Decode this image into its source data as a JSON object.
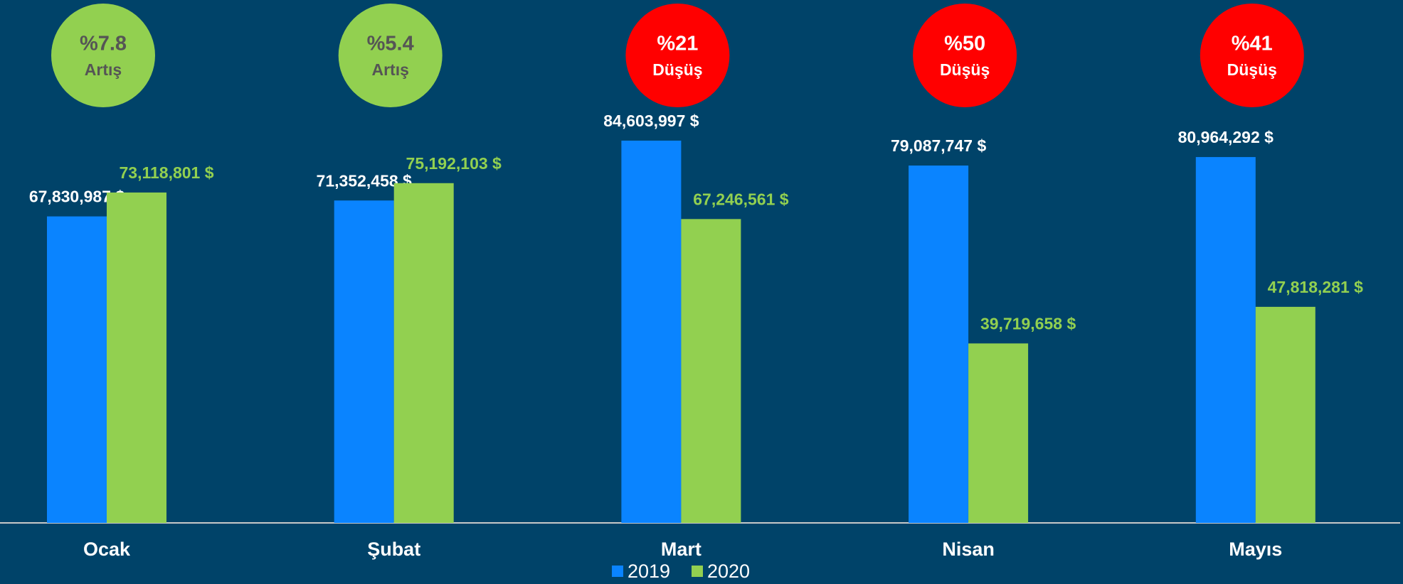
{
  "chart_data": {
    "type": "bar",
    "categories": [
      "Ocak",
      "Şubat",
      "Mart",
      "Nisan",
      "Mayıs"
    ],
    "series": [
      {
        "name": "2019",
        "color": "#0a84ff",
        "values": [
          67830987,
          71352458,
          84603997,
          79087747,
          80964292
        ],
        "value_labels": [
          "67,830,987 $",
          "71,352,458 $",
          "84,603,997 $",
          "79,087,747 $",
          "80,964,292 $"
        ]
      },
      {
        "name": "2020",
        "color": "#92d050",
        "values": [
          73118801,
          75192103,
          67246561,
          39719658,
          47818281
        ],
        "value_labels": [
          "73,118,801 $",
          "75,192,103 $",
          "67,246,561 $",
          "39,719,658 $",
          "47,818,281 $"
        ]
      }
    ],
    "annotations": [
      {
        "text": "%7.8",
        "subtext": "Artış",
        "color": "#92d050"
      },
      {
        "text": "%5.4",
        "subtext": "Artış",
        "color": "#92d050"
      },
      {
        "text": "%21",
        "subtext": "Düşüş",
        "color": "#ff0000"
      },
      {
        "text": "%50",
        "subtext": "Düşüş",
        "color": "#ff0000"
      },
      {
        "text": "%41",
        "subtext": "Düşüş",
        "color": "#ff0000"
      }
    ],
    "ylim": [
      0,
      100000000
    ],
    "legend": "bottom"
  }
}
